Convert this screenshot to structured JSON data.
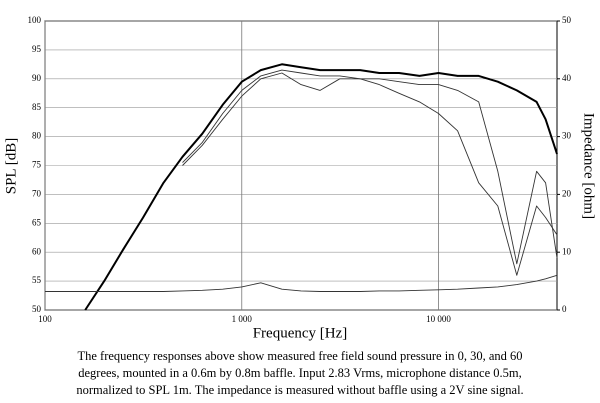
{
  "chart_data": {
    "type": "line",
    "x_label": "Frequency [Hz]",
    "y_label": "SPL [dB]",
    "y2_label": "Impedance [ohm]",
    "x_log": true,
    "grid": true,
    "x": [
      100,
      125,
      160,
      200,
      250,
      315,
      400,
      500,
      630,
      800,
      1000,
      1250,
      1600,
      2000,
      2500,
      3150,
      4000,
      5000,
      6300,
      8000,
      10000,
      12500,
      16000,
      20000,
      25000,
      31500,
      35000,
      40000
    ],
    "xlim": [
      100,
      40000
    ],
    "xticks": [
      100,
      {
        "value": 1000,
        "label": "1 000"
      },
      {
        "value": 10000,
        "label": "10 000"
      }
    ],
    "ylim": [
      50,
      100
    ],
    "yticks": [
      50,
      55,
      60,
      65,
      70,
      75,
      80,
      85,
      90,
      95,
      100
    ],
    "y2lim": [
      0,
      50
    ],
    "y2ticks": [
      0,
      10,
      20,
      30,
      40,
      50
    ],
    "series": [
      {
        "color": "#000000",
        "line_width": 2,
        "values": [
          null,
          null,
          50,
          55,
          60.5,
          66,
          72,
          76.5,
          80.5,
          85.5,
          89.5,
          91.5,
          92.5,
          92,
          91.5,
          91.5,
          91.5,
          91,
          91,
          90.5,
          91,
          90.5,
          90.5,
          89.5,
          88,
          86,
          83,
          77
        ]
      },
      {
        "color": "#333333",
        "line_width": 0.9,
        "values": [
          null,
          null,
          null,
          null,
          null,
          null,
          null,
          75.5,
          79,
          84,
          88,
          90.5,
          91.5,
          91,
          90.5,
          90.5,
          90,
          90,
          89.5,
          89,
          89,
          88,
          86,
          74,
          58,
          74,
          72,
          59
        ]
      },
      {
        "color": "#333333",
        "line_width": 0.9,
        "values": [
          null,
          null,
          null,
          null,
          null,
          null,
          null,
          75,
          78.5,
          83,
          87,
          90,
          91,
          89,
          88,
          90,
          90,
          89,
          87.5,
          86,
          84,
          81,
          72,
          68,
          56,
          68,
          66,
          63
        ]
      },
      {
        "color": "#333333",
        "line_width": 0.9,
        "axis": "y2",
        "values": [
          3.2,
          3.2,
          3.2,
          3.2,
          3.2,
          3.2,
          3.2,
          3.3,
          3.4,
          3.6,
          4,
          4.7,
          3.6,
          3.3,
          3.2,
          3.2,
          3.2,
          3.3,
          3.3,
          3.4,
          3.5,
          3.6,
          3.8,
          4,
          4.4,
          5,
          5.4,
          6
        ]
      }
    ],
    "caption": [
      "The frequency responses above show measured free field sound pressure in 0, 30, and 60",
      "degrees, mounted in a 0.6m by 0.8m baffle. Input 2.83 Vrms, microphone distance 0.5m,",
      "normalized to SPL 1m. The impedance is measured without baffle using a 2V sine signal."
    ]
  }
}
